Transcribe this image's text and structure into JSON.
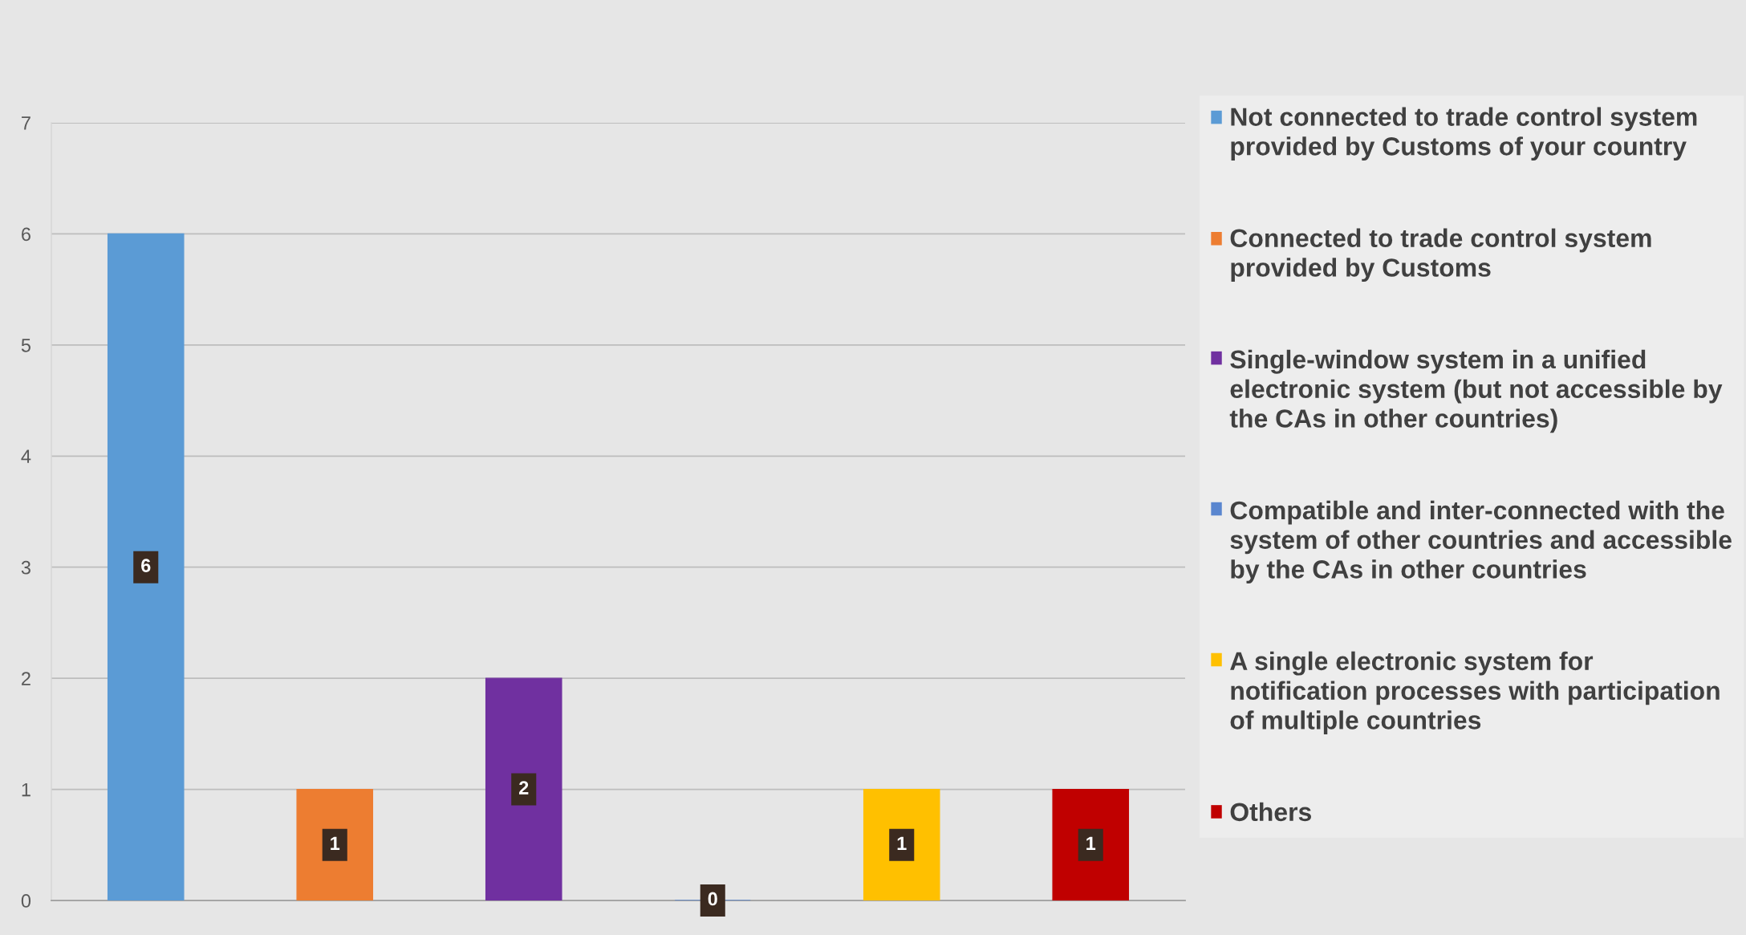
{
  "chart_data": {
    "type": "bar",
    "categories": [
      null,
      null,
      null,
      null,
      null,
      null
    ],
    "series": [
      {
        "name": "Not connected to trade control system\nprovided by Customs of your country",
        "color": "#5b9bd5",
        "values": [
          6,
          null,
          null,
          null,
          null,
          null
        ]
      },
      {
        "name": "Connected to trade control system\nprovided by Customs",
        "color": "#ed7d31",
        "values": [
          null,
          1,
          null,
          null,
          null,
          null
        ]
      },
      {
        "name": "Single-window system in a unified\nelectronic system (but not accessible by\nthe CAs in other countries)",
        "color": "#7030a0",
        "values": [
          null,
          null,
          2,
          null,
          null,
          null
        ]
      },
      {
        "name": "Compatible and inter-connected with the\nsystem of other countries and accessible\nby the CAs in other countries",
        "color": "#5a86cf",
        "values": [
          null,
          null,
          null,
          0,
          null,
          null
        ]
      },
      {
        "name": "A single electronic system for\nnotification processes with participation\nof multiple countries",
        "color": "#ffc000",
        "values": [
          null,
          null,
          null,
          null,
          1,
          null
        ]
      },
      {
        "name": "Others",
        "color": "#c00000",
        "values": [
          null,
          null,
          null,
          null,
          null,
          1
        ]
      }
    ],
    "ylim": [
      0,
      7
    ],
    "yticks": [
      0,
      1,
      2,
      3,
      4,
      5,
      6,
      7
    ],
    "grid": "y",
    "legend": "right",
    "tick_labels": "y",
    "data_labels": true
  }
}
